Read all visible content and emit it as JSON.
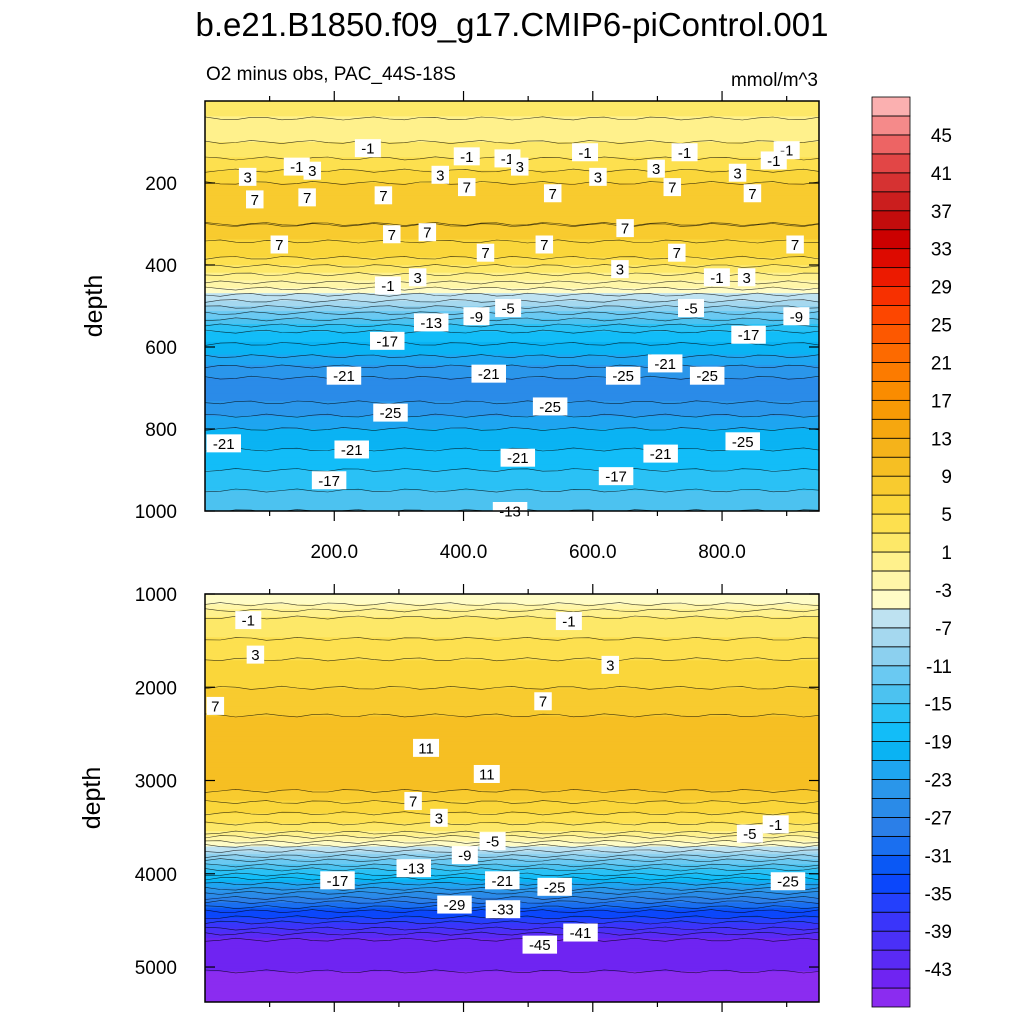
{
  "chart_data": {
    "type": "heatmap",
    "title": "b.e21.B1850.f09_g17.CMIP6-piControl.001",
    "subtitle": "O2 minus obs, PAC_44S-18S",
    "units": "mmol/m^3",
    "xlim": [
      0,
      950
    ],
    "x_ticks": [
      200,
      400,
      600,
      800
    ],
    "x_tick_labels": [
      "200.0",
      "400.0",
      "600.0",
      "800.0"
    ],
    "colorbar": {
      "min": -47,
      "max": 49,
      "step": 2,
      "colors": [
        "#8b2cf0",
        "#6f24f2",
        "#5a2af5",
        "#4a30f7",
        "#3a35fa",
        "#2440fc",
        "#0b47fb",
        "#0a58f5",
        "#1a6ff0",
        "#2b7fe8",
        "#2a8be8",
        "#2a96ea",
        "#1ea5f0",
        "#0ab3f3",
        "#12bdf8",
        "#2ac1f5",
        "#4cc2f0",
        "#6ac9f2",
        "#8cd0ef",
        "#a5d8ef",
        "#bee2f1",
        "#fffcc6",
        "#fff6a8",
        "#fff18c",
        "#fde868",
        "#fde04f",
        "#fad63a",
        "#f8cb2f",
        "#f6bf23",
        "#f5b31a",
        "#f6a70f",
        "#f79a05",
        "#fa8c00",
        "#fc7b00",
        "#fd6a00",
        "#fd5800",
        "#fd4600",
        "#f73000",
        "#ec1a00",
        "#dd0a00",
        "#cc0000",
        "#c30c0c",
        "#cb1e1e",
        "#d63232",
        "#e24646",
        "#ed6464",
        "#f58a8a",
        "#fbb0b0"
      ],
      "label_values": [
        -43,
        -39,
        -35,
        -31,
        -27,
        -23,
        -19,
        -15,
        -11,
        -7,
        -3,
        1,
        5,
        9,
        13,
        17,
        21,
        25,
        29,
        33,
        37,
        41,
        45
      ]
    },
    "panels": [
      {
        "name": "upper",
        "ylabel": "depth",
        "ylim": [
          0,
          1000
        ],
        "y_ticks": [
          200,
          400,
          600,
          800,
          1000
        ],
        "y_tick_labels": [
          "200",
          "400",
          "600",
          "800",
          "1000"
        ],
        "profile": [
          {
            "depth": 0,
            "value": 1
          },
          {
            "depth": 40,
            "value": 1
          },
          {
            "depth": 60,
            "value": -1
          },
          {
            "depth": 100,
            "value": 1
          },
          {
            "depth": 140,
            "value": 3
          },
          {
            "depth": 200,
            "value": 7
          },
          {
            "depth": 300,
            "value": 9
          },
          {
            "depth": 380,
            "value": 5
          },
          {
            "depth": 440,
            "value": -1
          },
          {
            "depth": 500,
            "value": -9
          },
          {
            "depth": 560,
            "value": -17
          },
          {
            "depth": 620,
            "value": -21
          },
          {
            "depth": 700,
            "value": -27
          },
          {
            "depth": 800,
            "value": -21
          },
          {
            "depth": 900,
            "value": -17
          },
          {
            "depth": 1000,
            "value": -13
          }
        ],
        "contour_labels": [
          {
            "text": "-1",
            "x": 252,
            "depth": 115
          },
          {
            "text": "-1",
            "x": 405,
            "depth": 135
          },
          {
            "text": "-1",
            "x": 468,
            "depth": 140
          },
          {
            "text": "-1",
            "x": 588,
            "depth": 125
          },
          {
            "text": "-1",
            "x": 742,
            "depth": 125
          },
          {
            "text": "-1",
            "x": 900,
            "depth": 120
          },
          {
            "text": "-1",
            "x": 880,
            "depth": 145
          },
          {
            "text": "-1",
            "x": 142,
            "depth": 160
          },
          {
            "text": "3",
            "x": 66,
            "depth": 185
          },
          {
            "text": "3",
            "x": 166,
            "depth": 170
          },
          {
            "text": "3",
            "x": 364,
            "depth": 180
          },
          {
            "text": "3",
            "x": 487,
            "depth": 160
          },
          {
            "text": "3",
            "x": 608,
            "depth": 185
          },
          {
            "text": "3",
            "x": 698,
            "depth": 165
          },
          {
            "text": "3",
            "x": 824,
            "depth": 175
          },
          {
            "text": "7",
            "x": 77,
            "depth": 240
          },
          {
            "text": "7",
            "x": 158,
            "depth": 235
          },
          {
            "text": "7",
            "x": 276,
            "depth": 230
          },
          {
            "text": "7",
            "x": 405,
            "depth": 210
          },
          {
            "text": "7",
            "x": 538,
            "depth": 225
          },
          {
            "text": "7",
            "x": 723,
            "depth": 210
          },
          {
            "text": "7",
            "x": 847,
            "depth": 225
          },
          {
            "text": "7",
            "x": 115,
            "depth": 350
          },
          {
            "text": "7",
            "x": 289,
            "depth": 325
          },
          {
            "text": "7",
            "x": 344,
            "depth": 320
          },
          {
            "text": "7",
            "x": 434,
            "depth": 370
          },
          {
            "text": "7",
            "x": 525,
            "depth": 350
          },
          {
            "text": "7",
            "x": 650,
            "depth": 310
          },
          {
            "text": "7",
            "x": 730,
            "depth": 370
          },
          {
            "text": "7",
            "x": 913,
            "depth": 350
          },
          {
            "text": "3",
            "x": 329,
            "depth": 430
          },
          {
            "text": "3",
            "x": 642,
            "depth": 410
          },
          {
            "text": "3",
            "x": 838,
            "depth": 430
          },
          {
            "text": "-1",
            "x": 283,
            "depth": 450
          },
          {
            "text": "-1",
            "x": 792,
            "depth": 430
          },
          {
            "text": "-5",
            "x": 469,
            "depth": 505
          },
          {
            "text": "-5",
            "x": 752,
            "depth": 505
          },
          {
            "text": "-9",
            "x": 420,
            "depth": 525
          },
          {
            "text": "-9",
            "x": 915,
            "depth": 525
          },
          {
            "text": "-13",
            "x": 350,
            "depth": 540
          },
          {
            "text": "-17",
            "x": 282,
            "depth": 585
          },
          {
            "text": "-17",
            "x": 841,
            "depth": 570
          },
          {
            "text": "-21",
            "x": 215,
            "depth": 670
          },
          {
            "text": "-21",
            "x": 439,
            "depth": 665
          },
          {
            "text": "-21",
            "x": 712,
            "depth": 640
          },
          {
            "text": "-25",
            "x": 647,
            "depth": 670
          },
          {
            "text": "-25",
            "x": 777,
            "depth": 670
          },
          {
            "text": "-25",
            "x": 287,
            "depth": 760
          },
          {
            "text": "-25",
            "x": 534,
            "depth": 745
          },
          {
            "text": "-25",
            "x": 832,
            "depth": 830
          },
          {
            "text": "-21",
            "x": 29,
            "depth": 835
          },
          {
            "text": "-21",
            "x": 227,
            "depth": 850
          },
          {
            "text": "-21",
            "x": 484,
            "depth": 870
          },
          {
            "text": "-21",
            "x": 705,
            "depth": 860
          },
          {
            "text": "-17",
            "x": 192,
            "depth": 925
          },
          {
            "text": "-17",
            "x": 636,
            "depth": 915
          },
          {
            "text": "-13",
            "x": 472,
            "depth": 1000
          }
        ]
      },
      {
        "name": "lower",
        "ylabel": "depth",
        "ylim": [
          1000,
          5375
        ],
        "y_ticks": [
          1000,
          2000,
          3000,
          4000,
          5000
        ],
        "y_tick_labels": [
          "1000",
          "2000",
          "3000",
          "4000",
          "5000"
        ],
        "profile": [
          {
            "depth": 1000,
            "value": -5
          },
          {
            "depth": 1100,
            "value": -3
          },
          {
            "depth": 1250,
            "value": 1
          },
          {
            "depth": 1700,
            "value": 5
          },
          {
            "depth": 2300,
            "value": 9
          },
          {
            "depth": 2800,
            "value": 11
          },
          {
            "depth": 3100,
            "value": 9
          },
          {
            "depth": 3350,
            "value": 5
          },
          {
            "depth": 3550,
            "value": 1
          },
          {
            "depth": 3800,
            "value": -9
          },
          {
            "depth": 4100,
            "value": -21
          },
          {
            "depth": 4400,
            "value": -33
          },
          {
            "depth": 4700,
            "value": -43
          },
          {
            "depth": 5375,
            "value": -47
          }
        ],
        "contour_labels": [
          {
            "text": "-1",
            "x": 67,
            "depth": 1280
          },
          {
            "text": "-1",
            "x": 563,
            "depth": 1290
          },
          {
            "text": "3",
            "x": 78,
            "depth": 1650
          },
          {
            "text": "3",
            "x": 627,
            "depth": 1760
          },
          {
            "text": "7",
            "x": 16,
            "depth": 2200
          },
          {
            "text": "7",
            "x": 523,
            "depth": 2150
          },
          {
            "text": "11",
            "x": 342,
            "depth": 2650
          },
          {
            "text": "11",
            "x": 436,
            "depth": 2930
          },
          {
            "text": "7",
            "x": 322,
            "depth": 3220
          },
          {
            "text": "3",
            "x": 362,
            "depth": 3400
          },
          {
            "text": "-5",
            "x": 445,
            "depth": 3650
          },
          {
            "text": "-5",
            "x": 843,
            "depth": 3570
          },
          {
            "text": "-1",
            "x": 883,
            "depth": 3470
          },
          {
            "text": "-9",
            "x": 402,
            "depth": 3800
          },
          {
            "text": "-13",
            "x": 323,
            "depth": 3940
          },
          {
            "text": "-17",
            "x": 205,
            "depth": 4070
          },
          {
            "text": "-21",
            "x": 460,
            "depth": 4070
          },
          {
            "text": "-25",
            "x": 541,
            "depth": 4140
          },
          {
            "text": "-25",
            "x": 902,
            "depth": 4080
          },
          {
            "text": "-29",
            "x": 386,
            "depth": 4330
          },
          {
            "text": "-33",
            "x": 461,
            "depth": 4380
          },
          {
            "text": "-41",
            "x": 581,
            "depth": 4630
          },
          {
            "text": "-45",
            "x": 518,
            "depth": 4760
          }
        ]
      }
    ]
  }
}
